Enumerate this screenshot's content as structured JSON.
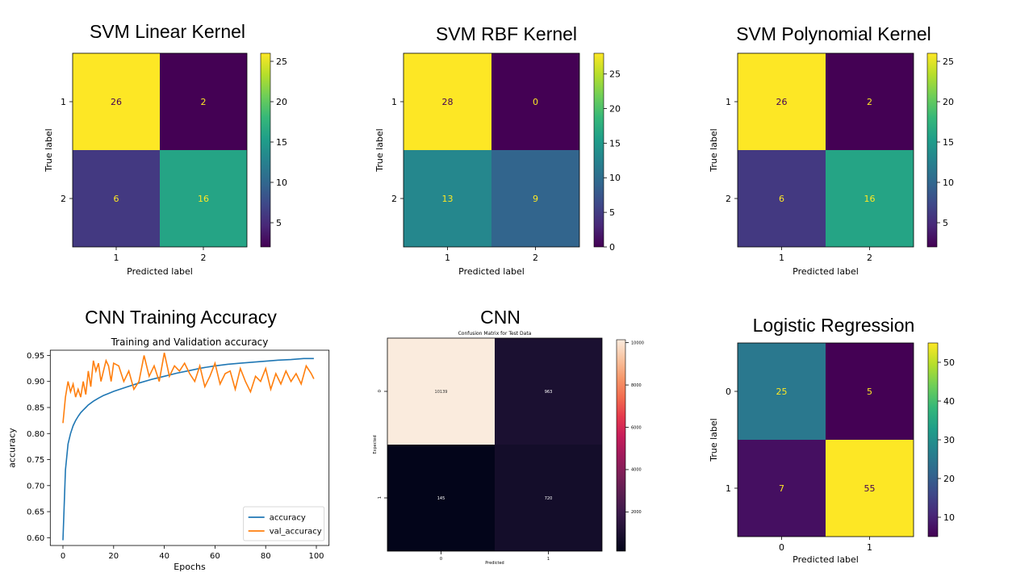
{
  "panels": {
    "svm_linear": {
      "title": "SVM Linear Kernel"
    },
    "svm_rbf": {
      "title": "SVM RBF Kernel"
    },
    "svm_poly": {
      "title": "SVM Polynomial Kernel"
    },
    "cnn_acc": {
      "title": "CNN Training Accuracy"
    },
    "cnn_cm": {
      "title": "CNN"
    },
    "logreg": {
      "title": "Logistic Regression"
    }
  },
  "colors": {
    "viridis_dark": "#440154",
    "viridis_yellow": "#fde725",
    "accuracy_line": "#1f77b4",
    "val_accuracy_line": "#ff7f0e"
  },
  "chart_data": [
    {
      "id": "svm_linear",
      "type": "heatmap",
      "title": "SVM Linear Kernel",
      "xlabel": "Predicted label",
      "ylabel": "True label",
      "row_labels": [
        "1",
        "2"
      ],
      "col_labels": [
        "1",
        "2"
      ],
      "values": [
        [
          26,
          2
        ],
        [
          6,
          16
        ]
      ],
      "colormap": "viridis",
      "colorbar_ticks": [
        5,
        10,
        15,
        20,
        25
      ],
      "colorbar_range": [
        2,
        26
      ]
    },
    {
      "id": "svm_rbf",
      "type": "heatmap",
      "title": "SVM RBF Kernel",
      "xlabel": "Predicted label",
      "ylabel": "True label",
      "row_labels": [
        "1",
        "2"
      ],
      "col_labels": [
        "1",
        "2"
      ],
      "values": [
        [
          28,
          0
        ],
        [
          13,
          9
        ]
      ],
      "colormap": "viridis",
      "colorbar_ticks": [
        0,
        5,
        10,
        15,
        20,
        25
      ],
      "colorbar_range": [
        0,
        28
      ]
    },
    {
      "id": "svm_poly",
      "type": "heatmap",
      "title": "SVM Polynomial Kernel",
      "xlabel": "Predicted label",
      "ylabel": "True label",
      "row_labels": [
        "1",
        "2"
      ],
      "col_labels": [
        "1",
        "2"
      ],
      "values": [
        [
          26,
          2
        ],
        [
          6,
          16
        ]
      ],
      "colormap": "viridis",
      "colorbar_ticks": [
        5,
        10,
        15,
        20,
        25
      ],
      "colorbar_range": [
        2,
        26
      ]
    },
    {
      "id": "cnn_acc",
      "type": "line",
      "title": "Training and Validation accuracy",
      "xlabel": "Epochs",
      "ylabel": "accuracy",
      "xlim": [
        0,
        100
      ],
      "ylim": [
        0.585,
        0.96
      ],
      "xticks": [
        0,
        20,
        40,
        60,
        80,
        100
      ],
      "yticks": [
        0.6,
        0.65,
        0.7,
        0.75,
        0.8,
        0.85,
        0.9,
        0.95
      ],
      "legend_position": "lower-right",
      "series": [
        {
          "name": "accuracy",
          "x": [
            0,
            1,
            2,
            3,
            4,
            5,
            6,
            7,
            8,
            9,
            10,
            12,
            14,
            16,
            18,
            20,
            25,
            30,
            35,
            40,
            45,
            50,
            55,
            60,
            65,
            70,
            75,
            80,
            85,
            90,
            95,
            99
          ],
          "values": [
            0.595,
            0.73,
            0.78,
            0.8,
            0.815,
            0.825,
            0.833,
            0.84,
            0.845,
            0.85,
            0.855,
            0.862,
            0.868,
            0.873,
            0.877,
            0.881,
            0.889,
            0.897,
            0.904,
            0.91,
            0.916,
            0.921,
            0.926,
            0.93,
            0.933,
            0.935,
            0.937,
            0.939,
            0.941,
            0.942,
            0.944,
            0.944
          ]
        },
        {
          "name": "val_accuracy",
          "x": [
            0,
            1,
            2,
            3,
            4,
            5,
            6,
            7,
            8,
            9,
            10,
            11,
            12,
            13,
            14,
            15,
            16,
            17,
            18,
            19,
            20,
            22,
            24,
            26,
            28,
            30,
            32,
            34,
            36,
            38,
            40,
            42,
            44,
            46,
            48,
            50,
            52,
            54,
            56,
            58,
            60,
            62,
            64,
            66,
            68,
            70,
            72,
            74,
            76,
            78,
            80,
            82,
            84,
            86,
            88,
            90,
            92,
            94,
            96,
            98,
            99
          ],
          "values": [
            0.82,
            0.87,
            0.9,
            0.88,
            0.895,
            0.87,
            0.885,
            0.87,
            0.9,
            0.875,
            0.92,
            0.89,
            0.94,
            0.92,
            0.935,
            0.9,
            0.92,
            0.94,
            0.93,
            0.9,
            0.935,
            0.93,
            0.9,
            0.92,
            0.885,
            0.9,
            0.95,
            0.91,
            0.93,
            0.9,
            0.955,
            0.91,
            0.93,
            0.92,
            0.935,
            0.915,
            0.9,
            0.93,
            0.89,
            0.91,
            0.935,
            0.895,
            0.915,
            0.92,
            0.885,
            0.925,
            0.9,
            0.88,
            0.91,
            0.9,
            0.925,
            0.885,
            0.915,
            0.895,
            0.92,
            0.9,
            0.915,
            0.895,
            0.93,
            0.915,
            0.905
          ]
        }
      ]
    },
    {
      "id": "cnn_cm",
      "type": "heatmap",
      "title": "Confusion Matrix for Test Data",
      "xlabel": "Predicted",
      "ylabel": "Expected",
      "row_labels": [
        "0",
        "1"
      ],
      "col_labels": [
        "0",
        "1"
      ],
      "values": [
        [
          10139,
          963
        ],
        [
          145,
          720
        ]
      ],
      "colormap": "rocket",
      "colorbar_ticks": [
        2000,
        4000,
        6000,
        8000,
        10000
      ],
      "colorbar_range": [
        145,
        10139
      ]
    },
    {
      "id": "logreg",
      "type": "heatmap",
      "title": "Logistic Regression",
      "xlabel": "Predicted label",
      "ylabel": "True label",
      "row_labels": [
        "0",
        "1"
      ],
      "col_labels": [
        "0",
        "1"
      ],
      "values": [
        [
          25,
          5
        ],
        [
          7,
          55
        ]
      ],
      "colormap": "viridis",
      "colorbar_ticks": [
        10,
        20,
        30,
        40,
        50
      ],
      "colorbar_range": [
        5,
        55
      ]
    }
  ]
}
